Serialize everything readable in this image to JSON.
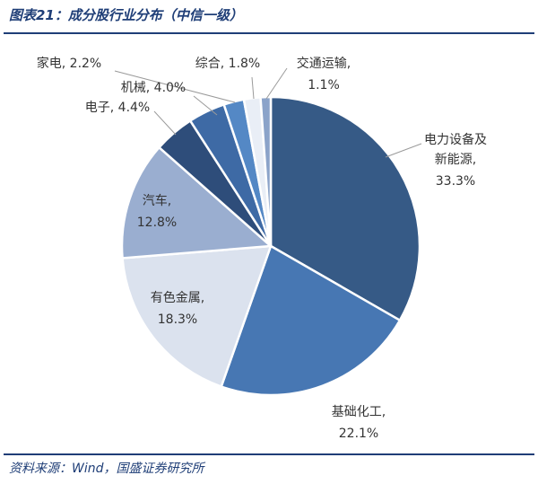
{
  "figure": {
    "title": "图表21：成分股行业分布（中信一级）",
    "source": "资料来源：Wind，国盛证券研究所"
  },
  "chart_data": {
    "type": "pie",
    "title": "",
    "start_angle_deg": 0,
    "direction": "clockwise",
    "slices": [
      {
        "name": "电力设备及新能源",
        "value": 33.3,
        "label": "33.3%",
        "color": "#365a86"
      },
      {
        "name": "基础化工",
        "value": 22.1,
        "label": "22.1%",
        "color": "#4777b3"
      },
      {
        "name": "有色金属",
        "value": 18.3,
        "label": "18.3%",
        "color": "#dbe2ee"
      },
      {
        "name": "汽车",
        "value": 12.8,
        "label": "12.8%",
        "color": "#9aaed0"
      },
      {
        "name": "电子",
        "value": 4.4,
        "label": "4.4%",
        "color": "#2e4d7a"
      },
      {
        "name": "机械",
        "value": 4.0,
        "label": "4.0%",
        "color": "#3e6aa5"
      },
      {
        "name": "家电",
        "value": 2.2,
        "label": "2.2%",
        "color": "#5488c5"
      },
      {
        "name": "综合",
        "value": 1.8,
        "label": "1.8%",
        "color": "#e9eef6"
      },
      {
        "name": "交通运输",
        "value": 1.1,
        "label": "1.1%",
        "color": "#8ba3c9"
      }
    ]
  }
}
